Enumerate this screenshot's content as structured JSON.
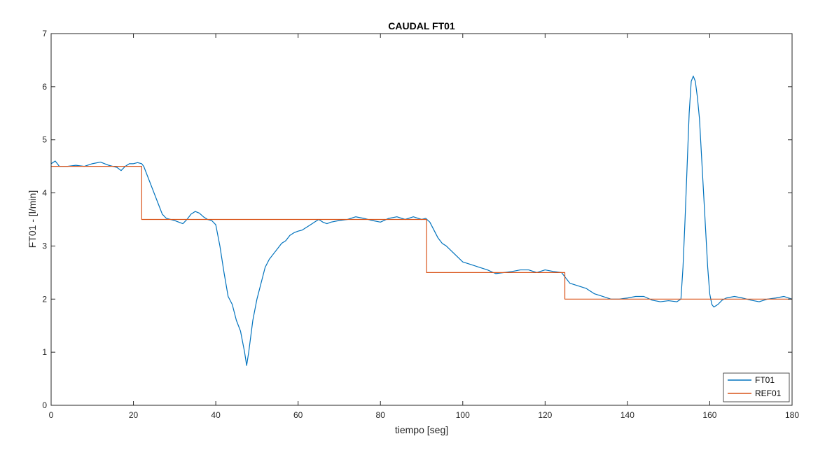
{
  "chart_data": {
    "type": "line",
    "title": "CAUDAL FT01",
    "xlabel": "tiempo [seg]",
    "ylabel": "FT01 - [l/min]",
    "xlim": [
      0,
      180
    ],
    "ylim": [
      0,
      7
    ],
    "xticks": [
      "0",
      "20",
      "40",
      "60",
      "80",
      "100",
      "120",
      "140",
      "160",
      "180"
    ],
    "yticks": [
      "0",
      "1",
      "2",
      "3",
      "4",
      "5",
      "6",
      "7"
    ],
    "grid": false,
    "legend_position": "bottom-right",
    "series": [
      {
        "name": "FT01",
        "color": "#0072BD",
        "x": [
          0,
          1,
          2,
          4,
          6,
          8,
          10,
          12,
          14,
          16,
          17,
          18,
          19,
          20,
          21,
          22,
          22.5,
          23,
          24,
          25,
          26,
          27,
          28,
          29,
          30,
          31,
          32,
          33,
          34,
          35,
          36,
          37,
          38,
          39,
          40,
          41,
          42,
          43,
          44,
          45,
          46,
          46.5,
          47,
          47.5,
          48,
          49,
          50,
          51,
          52,
          53,
          54,
          55,
          56,
          57,
          58,
          59,
          60,
          61,
          62,
          63,
          64,
          65,
          66,
          67,
          68,
          70,
          72,
          74,
          76,
          78,
          80,
          82,
          84,
          86,
          88,
          90,
          91,
          92,
          93,
          94,
          95,
          96,
          98,
          100,
          102,
          104,
          106,
          108,
          110,
          112,
          114,
          116,
          118,
          120,
          122,
          124,
          125,
          126,
          128,
          130,
          132,
          134,
          136,
          138,
          140,
          142,
          144,
          146,
          148,
          150,
          152,
          153,
          153.5,
          154,
          154.5,
          155,
          155.5,
          156,
          156.5,
          157,
          157.5,
          158,
          158.5,
          159,
          159.5,
          160,
          160.5,
          161,
          162,
          163,
          164,
          166,
          168,
          170,
          172,
          174,
          176,
          178,
          180
        ],
        "y": [
          4.55,
          4.6,
          4.5,
          4.5,
          4.52,
          4.5,
          4.55,
          4.58,
          4.52,
          4.48,
          4.42,
          4.5,
          4.55,
          4.55,
          4.57,
          4.55,
          4.5,
          4.4,
          4.2,
          4.0,
          3.8,
          3.6,
          3.52,
          3.5,
          3.48,
          3.45,
          3.42,
          3.5,
          3.6,
          3.65,
          3.62,
          3.55,
          3.5,
          3.48,
          3.4,
          3.0,
          2.5,
          2.05,
          1.9,
          1.6,
          1.4,
          1.2,
          1.0,
          0.75,
          1.0,
          1.6,
          2.0,
          2.3,
          2.6,
          2.75,
          2.85,
          2.95,
          3.05,
          3.1,
          3.2,
          3.25,
          3.28,
          3.3,
          3.35,
          3.4,
          3.45,
          3.5,
          3.45,
          3.42,
          3.45,
          3.48,
          3.5,
          3.55,
          3.52,
          3.48,
          3.45,
          3.52,
          3.55,
          3.5,
          3.55,
          3.5,
          3.52,
          3.45,
          3.3,
          3.15,
          3.05,
          3.0,
          2.85,
          2.7,
          2.65,
          2.6,
          2.55,
          2.48,
          2.5,
          2.52,
          2.55,
          2.55,
          2.5,
          2.55,
          2.52,
          2.5,
          2.4,
          2.3,
          2.25,
          2.2,
          2.1,
          2.05,
          2.0,
          2.0,
          2.02,
          2.05,
          2.05,
          1.98,
          1.95,
          1.97,
          1.95,
          2.0,
          2.6,
          3.5,
          4.5,
          5.5,
          6.1,
          6.2,
          6.1,
          5.8,
          5.4,
          4.7,
          4.0,
          3.3,
          2.6,
          2.1,
          1.9,
          1.85,
          1.9,
          1.98,
          2.02,
          2.05,
          2.02,
          1.98,
          1.95,
          2.0,
          2.02,
          2.05,
          2.0
        ]
      },
      {
        "name": "REF01",
        "color": "#D95319",
        "x": [
          0,
          22,
          22,
          91.2,
          91.2,
          124.8,
          124.8,
          180
        ],
        "y": [
          4.5,
          4.5,
          3.5,
          3.5,
          2.5,
          2.5,
          2.0,
          2.0
        ]
      }
    ]
  }
}
